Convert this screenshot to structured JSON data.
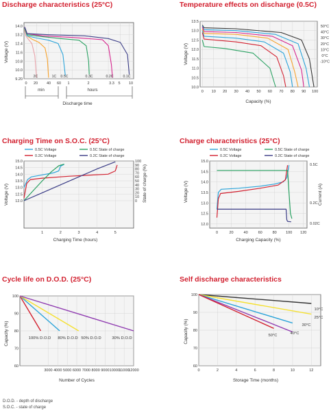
{
  "footnotes": [
    "D.O.D. - depth of discharge",
    "S.O.C. - state of charge"
  ],
  "chart_data": [
    {
      "id": "discharge",
      "type": "line",
      "title": "Discharge characteristics (25°C)",
      "xlabel": "Discharge time",
      "ylabel": "Voltage (V)",
      "ylim": [
        9.2,
        14.3
      ],
      "y_ticks": [
        9.2,
        10.0,
        10.8,
        11.6,
        12.4,
        13.2,
        14.0
      ],
      "y_tick_labels": [
        "9.20",
        "10.0",
        "10.8",
        "11.6",
        "12.4",
        "13.2",
        "14.0"
      ],
      "x_tick_labels": [
        "0",
        "20",
        "40",
        "60",
        "1",
        "2",
        "3.3",
        "5",
        "10"
      ],
      "x_unit_labels": [
        "min",
        "hours"
      ],
      "grid": true,
      "series": [
        {
          "name": "2C",
          "color": "#e8a1a8",
          "points": [
            [
              0,
              13.6
            ],
            [
              2,
              13.1
            ],
            [
              6,
              12.8
            ],
            [
              12,
              12.4
            ],
            [
              17,
              11.3
            ],
            [
              20,
              9.3
            ]
          ]
        },
        {
          "name": "1C",
          "color": "#f7a12a",
          "points": [
            [
              0,
              13.7
            ],
            [
              4,
              13.1
            ],
            [
              12,
              12.8
            ],
            [
              24,
              12.5
            ],
            [
              34,
              12.0
            ],
            [
              38,
              11.0
            ],
            [
              40,
              9.3
            ]
          ]
        },
        {
          "name": "0.5C",
          "color": "#2aa3d9",
          "points": [
            [
              0,
              13.8
            ],
            [
              4,
              13.1
            ],
            [
              20,
              12.9
            ],
            [
              40,
              12.7
            ],
            [
              56,
              12.4
            ],
            [
              64,
              11.4
            ],
            [
              68,
              9.5
            ]
          ]
        },
        {
          "name": "0.3C",
          "color": "#27a060",
          "points": [
            [
              0,
              13.8
            ],
            [
              4,
              13.2
            ],
            [
              25,
              13.05
            ],
            [
              60,
              12.85
            ],
            [
              91,
              12.7
            ],
            [
              103,
              12.2
            ],
            [
              107,
              10.8
            ],
            [
              108,
              9.6
            ]
          ]
        },
        {
          "name": "0.2C",
          "color": "#d6248d",
          "points": [
            [
              0,
              13.9
            ],
            [
              4,
              13.3
            ],
            [
              30,
              13.1
            ],
            [
              80,
              12.95
            ],
            [
              130,
              12.75
            ],
            [
              140,
              12.2
            ],
            [
              145,
              10.5
            ],
            [
              147,
              9.3
            ]
          ]
        },
        {
          "name": "0.1C",
          "color": "#3a3c86",
          "points": [
            [
              0,
              13.9
            ],
            [
              4,
              13.3
            ],
            [
              40,
              13.2
            ],
            [
              100,
              13.1
            ],
            [
              140,
              12.85
            ],
            [
              160,
              12.5
            ],
            [
              172,
              11.4
            ],
            [
              175,
              9.6
            ]
          ]
        }
      ]
    },
    {
      "id": "temperature",
      "type": "line",
      "title": "Temperature effects on discharge (0.5C)",
      "xlabel": "Capacity (%)",
      "ylabel": "Voltage (V)",
      "xlim": [
        0,
        100
      ],
      "ylim": [
        10.0,
        13.5
      ],
      "x_ticks": [
        0,
        10,
        20,
        30,
        40,
        50,
        60,
        70,
        80,
        90,
        100
      ],
      "y_ticks": [
        10.0,
        10.5,
        11.0,
        11.5,
        12.0,
        12.5,
        13.0,
        13.5
      ],
      "y_tick_labels": [
        "10.0",
        "10.5",
        "11.0",
        "11.5",
        "12.0",
        "12.5",
        "13.0",
        "13.5"
      ],
      "grid": true,
      "series": [
        {
          "name": "50°C",
          "color": "#333333",
          "points": [
            [
              0,
              13.3
            ],
            [
              1.5,
              13.15
            ],
            [
              30,
              13.1
            ],
            [
              70,
              12.9
            ],
            [
              88,
              12.5
            ],
            [
              95,
              11.5
            ],
            [
              99,
              10.0
            ]
          ]
        },
        {
          "name": "40°C",
          "color": "#2aa3d9",
          "points": [
            [
              0,
              13.25
            ],
            [
              1.5,
              13.05
            ],
            [
              30,
              13.0
            ],
            [
              65,
              12.8
            ],
            [
              85,
              12.3
            ],
            [
              92,
              11.0
            ],
            [
              95,
              10.0
            ]
          ]
        },
        {
          "name": "30°C",
          "color": "#d6248d",
          "points": [
            [
              0,
              13.2
            ],
            [
              1.5,
              12.95
            ],
            [
              30,
              12.9
            ],
            [
              62,
              12.7
            ],
            [
              80,
              12.2
            ],
            [
              88,
              10.9
            ],
            [
              90,
              10.0
            ]
          ]
        },
        {
          "name": "20°C",
          "color": "#f7a12a",
          "points": [
            [
              0,
              13.1
            ],
            [
              1.5,
              12.85
            ],
            [
              30,
              12.8
            ],
            [
              58,
              12.6
            ],
            [
              76,
              12.0
            ],
            [
              82,
              10.8
            ],
            [
              85,
              10.0
            ]
          ]
        },
        {
          "name": "10°C",
          "color": "#2aa3d9",
          "points": [
            [
              0,
              13.0
            ],
            [
              1.5,
              12.7
            ],
            [
              30,
              12.6
            ],
            [
              55,
              12.4
            ],
            [
              72,
              11.8
            ],
            [
              78,
              10.8
            ],
            [
              80,
              10.0
            ]
          ]
        },
        {
          "name": "0°C",
          "color": "#d2202f",
          "points": [
            [
              0,
              12.9
            ],
            [
              1.5,
              12.55
            ],
            [
              30,
              12.4
            ],
            [
              52,
              12.2
            ],
            [
              66,
              11.6
            ],
            [
              72,
              10.6
            ],
            [
              74,
              10.0
            ]
          ]
        },
        {
          "name": "-10°C",
          "color": "#27a060",
          "points": [
            [
              0,
              12.5
            ],
            [
              1.5,
              12.15
            ],
            [
              20,
              12.05
            ],
            [
              45,
              11.8
            ],
            [
              60,
              11.0
            ],
            [
              64,
              10.2
            ],
            [
              65,
              10.0
            ]
          ]
        }
      ]
    },
    {
      "id": "charging_time",
      "type": "line",
      "title": "Charging Time on S.O.C. (25°C)",
      "xlabel": "Charging Time (hours)",
      "ylabel": "Voltage (V)",
      "y2label": "State of charge (%)",
      "xlim": [
        0,
        6
      ],
      "ylim": [
        12.0,
        15.0
      ],
      "y2lim": [
        0,
        100
      ],
      "x_ticks": [
        1,
        2,
        3,
        4,
        5
      ],
      "y_ticks": [
        12.0,
        12.5,
        13.0,
        13.5,
        14.0,
        14.5,
        15.0
      ],
      "y_tick_labels": [
        "12.0",
        "12.5",
        "13.0",
        "13.5",
        "14.0",
        "14.5",
        "15.0"
      ],
      "y2_ticks": [
        0,
        10,
        20,
        30,
        40,
        50,
        60,
        70,
        80,
        90,
        100
      ],
      "legend": "top",
      "grid": true,
      "series": [
        {
          "name": "0.5C Voltage",
          "axis": "left",
          "color": "#2aa3d9",
          "points": [
            [
              0,
              13.0
            ],
            [
              0.2,
              13.6
            ],
            [
              0.4,
              13.8
            ],
            [
              1.0,
              13.95
            ],
            [
              1.6,
              14.1
            ],
            [
              1.9,
              14.25
            ],
            [
              2.0,
              14.6
            ],
            [
              2.2,
              14.75
            ]
          ]
        },
        {
          "name": "0.2C Voltage",
          "axis": "left",
          "color": "#d2202f",
          "points": [
            [
              0,
              12.2
            ],
            [
              0.15,
              13.3
            ],
            [
              0.35,
              13.6
            ],
            [
              1.0,
              13.7
            ],
            [
              2.5,
              13.85
            ],
            [
              4.6,
              14.0
            ],
            [
              5.0,
              14.25
            ],
            [
              5.1,
              14.7
            ]
          ]
        },
        {
          "name": "0.5C State of charge",
          "axis": "right",
          "color": "#27a060",
          "points": [
            [
              0,
              0
            ],
            [
              0.5,
              25
            ],
            [
              1.0,
              50
            ],
            [
              1.5,
              73
            ],
            [
              1.9,
              88
            ],
            [
              2.2,
              92
            ]
          ]
        },
        {
          "name": "0.2C State of charge",
          "axis": "right",
          "color": "#3a3c86",
          "points": [
            [
              0,
              0
            ],
            [
              1,
              20
            ],
            [
              2,
              40
            ],
            [
              3,
              60
            ],
            [
              4,
              80
            ],
            [
              5,
              98
            ]
          ]
        }
      ]
    },
    {
      "id": "charge_characteristics",
      "type": "line",
      "title": "Charge characteristics (25°C)",
      "xlabel": "Charging Capacity (%)",
      "ylabel": "Voltage (V)",
      "y2label": "Current (A)",
      "xlim": [
        -10,
        125
      ],
      "ylim": [
        11.8,
        15.0
      ],
      "x_ticks": [
        0,
        20,
        40,
        60,
        80,
        100,
        120
      ],
      "y_ticks": [
        12.0,
        12.5,
        13.0,
        13.5,
        14.0,
        14.5,
        15.0
      ],
      "y_tick_labels": [
        "12.0",
        "12.5",
        "13.0",
        "13.5",
        "14.0",
        "14.5",
        "15.0"
      ],
      "y2_tick_labels": [
        "0.5C",
        "0.2C",
        "0.02C"
      ],
      "legend": "top",
      "grid": true,
      "series": [
        {
          "name": "0.5C Voltage",
          "color": "#2aa3d9",
          "points": [
            [
              0,
              12.7
            ],
            [
              2,
              13.5
            ],
            [
              6,
              13.65
            ],
            [
              30,
              13.7
            ],
            [
              60,
              13.8
            ],
            [
              80,
              13.9
            ],
            [
              92,
              14.0
            ],
            [
              97,
              14.2
            ],
            [
              100,
              14.8
            ]
          ]
        },
        {
          "name": "0.2C Voltage",
          "color": "#d2202f",
          "points": [
            [
              0,
              12.3
            ],
            [
              2,
              13.2
            ],
            [
              5,
              13.45
            ],
            [
              30,
              13.55
            ],
            [
              60,
              13.7
            ],
            [
              85,
              13.85
            ],
            [
              95,
              14.1
            ],
            [
              98,
              14.8
            ]
          ]
        },
        {
          "name": "0.5C State of charge",
          "color": "#27a060",
          "points": [
            [
              0,
              14.55
            ],
            [
              95,
              14.55
            ],
            [
              98,
              14.55
            ],
            [
              100,
              13.5
            ],
            [
              102,
              12.5
            ],
            [
              104,
              12.25
            ]
          ]
        },
        {
          "name": "0.2C State of charge",
          "color": "#3a3c86",
          "points": [
            [
              0,
              12.7
            ],
            [
              96,
              12.7
            ],
            [
              97,
              12.2
            ],
            [
              98,
              12.12
            ],
            [
              103,
              12.1
            ]
          ]
        }
      ]
    },
    {
      "id": "cycle_life",
      "type": "line",
      "title": "Cycle life on D.O.D. (25°C)",
      "xlabel": "Number of Cycles",
      "ylabel": "Capacity (%)",
      "xlim": [
        0,
        12000
      ],
      "ylim": [
        60,
        100
      ],
      "x_ticks": [
        3000,
        4000,
        5000,
        6000,
        7000,
        8000,
        9000,
        10000,
        11000,
        12000
      ],
      "y_ticks": [
        60,
        70,
        80,
        90,
        100
      ],
      "grid": true,
      "series": [
        {
          "name": "100% D.O.D",
          "color": "#d2202f",
          "points": [
            [
              0,
              100
            ],
            [
              2200,
              80
            ]
          ]
        },
        {
          "name": "80% D.O.D",
          "color": "#2aa3d9",
          "points": [
            [
              0,
              100
            ],
            [
              4200,
              80
            ]
          ]
        },
        {
          "name": "50% D.O.D",
          "color": "#f5e030",
          "points": [
            [
              0,
              100
            ],
            [
              6200,
              80
            ]
          ]
        },
        {
          "name": "30% D.O.D",
          "color": "#8f3bb0",
          "points": [
            [
              0,
              100
            ],
            [
              12000,
              80
            ]
          ]
        }
      ]
    },
    {
      "id": "self_discharge",
      "type": "line",
      "title": "Self discharge characteristics",
      "xlabel": "Storage Time (months)",
      "ylabel": "Capacity (%)",
      "xlim": [
        0,
        13
      ],
      "ylim": [
        60,
        100
      ],
      "x_ticks": [
        0,
        2,
        4,
        6,
        8,
        10,
        12
      ],
      "y_ticks": [
        60,
        70,
        80,
        90,
        100
      ],
      "grid": true,
      "series": [
        {
          "name": "10°C",
          "color": "#333333",
          "points": [
            [
              0,
              100
            ],
            [
              12,
              95
            ]
          ]
        },
        {
          "name": "25°C",
          "color": "#f5e030",
          "points": [
            [
              0,
              100
            ],
            [
              12,
              89
            ]
          ]
        },
        {
          "name": "30°C",
          "color": "#2aa3d9",
          "points": [
            [
              0,
              100
            ],
            [
              10,
              84
            ]
          ]
        },
        {
          "name": "40°C",
          "color": "#8f3bb0",
          "points": [
            [
              0,
              100
            ],
            [
              10,
              79
            ]
          ]
        },
        {
          "name": "50°C",
          "color": "#d2202f",
          "points": [
            [
              0,
              100
            ],
            [
              8,
              81
            ]
          ]
        }
      ]
    }
  ]
}
